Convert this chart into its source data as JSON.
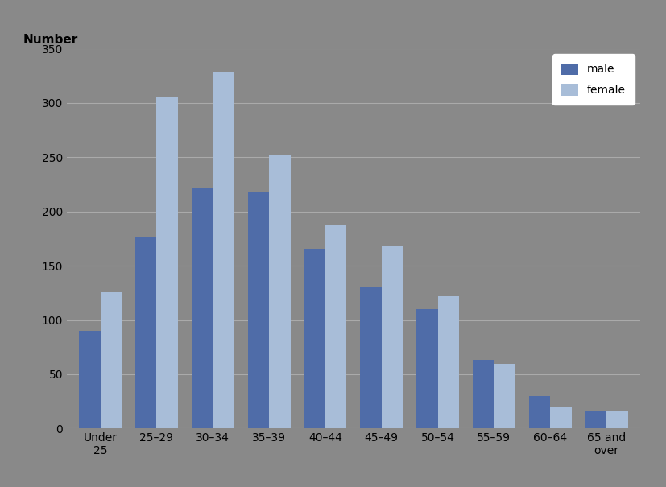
{
  "categories": [
    "Under\n25",
    "25–29",
    "30–34",
    "35–39",
    "40–44",
    "45–49",
    "50–54",
    "55–59",
    "60–64",
    "65 and\nover"
  ],
  "male_values": [
    90,
    176,
    221,
    218,
    166,
    131,
    110,
    63,
    30,
    16
  ],
  "female_values": [
    126,
    305,
    328,
    252,
    187,
    168,
    122,
    60,
    20,
    16
  ],
  "male_color": "#4F6CA8",
  "female_color": "#A8BDD8",
  "background_color": "#898989",
  "plot_bg_color": "#898989",
  "ylabel": "Number",
  "ylim": [
    0,
    350
  ],
  "yticks": [
    0,
    50,
    100,
    150,
    200,
    250,
    300,
    350
  ],
  "legend_labels": [
    "male",
    "female"
  ],
  "bar_width": 0.38,
  "grid_color": "#AAAAAA",
  "axis_fontsize": 11,
  "tick_fontsize": 10
}
